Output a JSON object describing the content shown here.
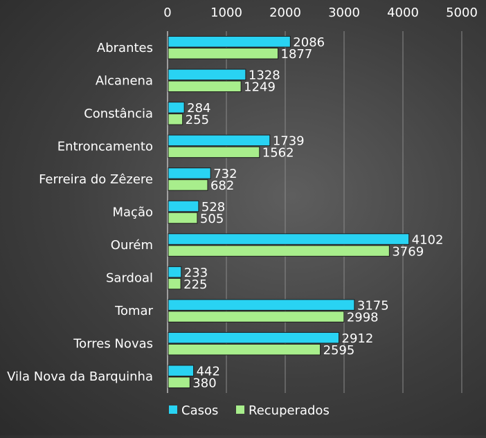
{
  "chart_data": {
    "type": "bar",
    "orientation": "horizontal",
    "categories": [
      "Abrantes",
      "Alcanena",
      "Constância",
      "Entroncamento",
      "Ferreira do Zêzere",
      "Mação",
      "Ourém",
      "Sardoal",
      "Tomar",
      "Torres Novas",
      "Vila Nova da Barquinha"
    ],
    "series": [
      {
        "name": "Casos",
        "color": "#29d3f3",
        "values": [
          2086,
          1328,
          284,
          1739,
          732,
          528,
          4102,
          233,
          3175,
          2912,
          442
        ]
      },
      {
        "name": "Recuperados",
        "color": "#a8ee8c",
        "values": [
          1877,
          1249,
          255,
          1562,
          682,
          505,
          3769,
          225,
          2998,
          2595,
          380
        ]
      }
    ],
    "x_ticks": [
      "0",
      "1000",
      "2000",
      "3000",
      "4000",
      "5000"
    ],
    "xlim": [
      0,
      5000
    ],
    "title": "",
    "xlabel": "",
    "ylabel": "",
    "grid": true,
    "legend_position": "bottom"
  }
}
